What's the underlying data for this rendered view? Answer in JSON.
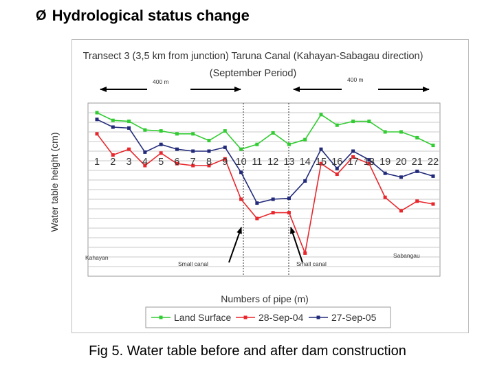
{
  "heading": {
    "bullet": "Ø",
    "text": "Hydrological status change"
  },
  "caption": "Fig 5. Water table before and after dam construction",
  "chart_data": {
    "type": "line",
    "title": "Transect 3 (3,5 km from junction) Taruna Canal (Kahayan-Sabagau direction)",
    "subtitle": "(September Period)",
    "xlabel": "Numbers of pipe (m)",
    "ylabel": "Water table height (cm)",
    "categories": [
      "1",
      "2",
      "3",
      "4",
      "5",
      "6",
      "7",
      "8",
      "9",
      "10",
      "11",
      "12",
      "13",
      "14",
      "15",
      "16",
      "17",
      "18",
      "19",
      "20",
      "21",
      "22"
    ],
    "ylim": [
      -120,
      60
    ],
    "grid": true,
    "legend_position": "bottom",
    "series": [
      {
        "name": "Land Surface",
        "color": "#33cc33",
        "values": [
          50,
          42,
          41,
          32,
          31,
          28,
          28,
          21,
          31,
          12,
          17,
          29,
          17,
          22,
          48,
          37,
          41,
          41,
          30,
          30,
          24,
          16
        ]
      },
      {
        "name": "28-Sep-04",
        "color": "#e8262b",
        "values": [
          28,
          6,
          12,
          -5,
          8,
          -3,
          -5,
          -5,
          2,
          -40,
          -60,
          -54,
          -54,
          -96,
          -3,
          -14,
          4,
          -3,
          -38,
          -52,
          -42,
          -45
        ]
      },
      {
        "name": "27-Sep-05",
        "color": "#222a7a",
        "values": [
          43,
          35,
          34,
          9,
          17,
          12,
          10,
          10,
          14,
          -12,
          -44,
          -40,
          -39,
          -21,
          12,
          -8,
          10,
          1,
          -13,
          -17,
          -11,
          -16
        ]
      }
    ],
    "annotations": {
      "distance_left": "400 m",
      "distance_right": "400 m",
      "kahayan": "Kahayan",
      "small_canal_left": "Small canal",
      "small_canal_right": "Small canal",
      "sabangau": "Sabangau"
    }
  }
}
